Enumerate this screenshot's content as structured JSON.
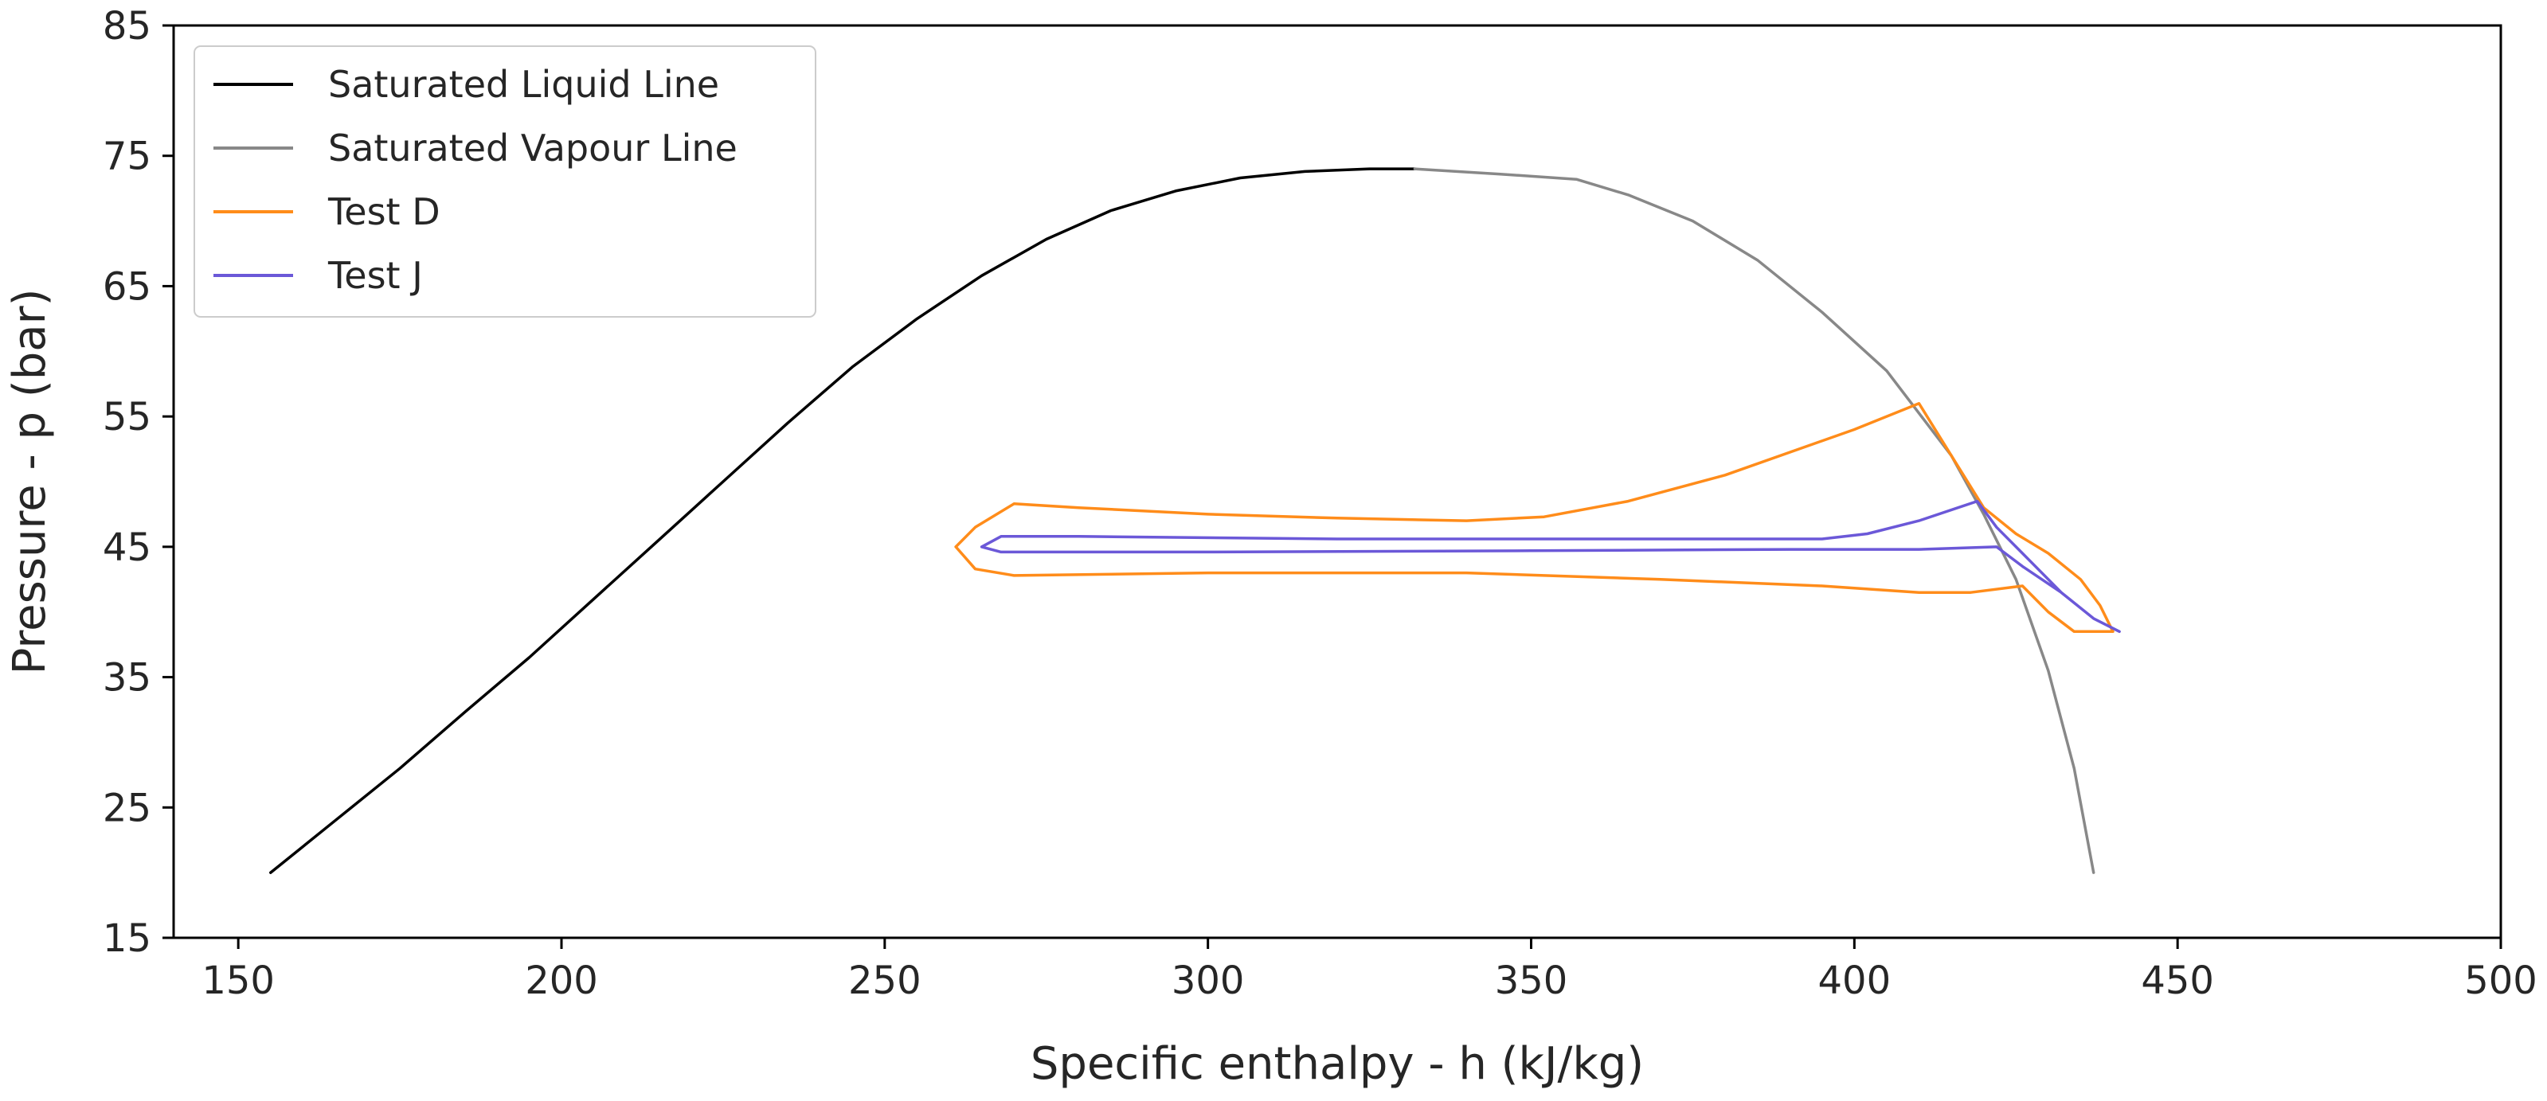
{
  "chart_data": {
    "type": "line",
    "title": "",
    "xlabel": "Specific enthalpy - h (kJ/kg)",
    "ylabel": "Pressure - p (bar)",
    "xlim": [
      140,
      500
    ],
    "ylim": [
      15,
      85
    ],
    "xticks": [
      150,
      200,
      250,
      300,
      350,
      400,
      450,
      500
    ],
    "yticks": [
      15,
      25,
      35,
      45,
      55,
      65,
      75,
      85
    ],
    "xtick_labels": [
      "150",
      "200",
      "250",
      "300",
      "350",
      "400",
      "450",
      "500"
    ],
    "ytick_labels": [
      "15",
      "25",
      "35",
      "45",
      "55",
      "65",
      "75",
      "85"
    ],
    "grid": false,
    "legend_position": "upper-left",
    "series": [
      {
        "name": "Saturated Liquid Line",
        "color": "#000000",
        "points": [
          [
            155,
            20
          ],
          [
            165,
            24
          ],
          [
            175,
            28
          ],
          [
            185,
            32.3
          ],
          [
            195,
            36.5
          ],
          [
            205,
            41
          ],
          [
            215,
            45.5
          ],
          [
            225,
            50
          ],
          [
            235,
            54.5
          ],
          [
            245,
            58.8
          ],
          [
            255,
            62.5
          ],
          [
            265,
            65.8
          ],
          [
            275,
            68.6
          ],
          [
            285,
            70.8
          ],
          [
            295,
            72.3
          ],
          [
            305,
            73.3
          ],
          [
            315,
            73.8
          ],
          [
            325,
            74
          ],
          [
            332,
            74
          ]
        ]
      },
      {
        "name": "Saturated Vapour Line",
        "color": "#888888",
        "points": [
          [
            332,
            74
          ],
          [
            345,
            73.6
          ],
          [
            357,
            73.2
          ],
          [
            365,
            72
          ],
          [
            375,
            70
          ],
          [
            385,
            67
          ],
          [
            395,
            63
          ],
          [
            405,
            58.5
          ],
          [
            415,
            52
          ],
          [
            420,
            47.5
          ],
          [
            425,
            42.5
          ],
          [
            430,
            35.5
          ],
          [
            434,
            28
          ],
          [
            437,
            20
          ]
        ]
      },
      {
        "name": "Test D",
        "color": "#ff8c1a",
        "points": [
          [
            261,
            45
          ],
          [
            264,
            46.5
          ],
          [
            270,
            48.3
          ],
          [
            280,
            48
          ],
          [
            300,
            47.5
          ],
          [
            320,
            47.2
          ],
          [
            340,
            47
          ],
          [
            352,
            47.3
          ],
          [
            365,
            48.5
          ],
          [
            380,
            50.5
          ],
          [
            400,
            54
          ],
          [
            410,
            56
          ],
          [
            415,
            52
          ],
          [
            420,
            48
          ],
          [
            425,
            46
          ],
          [
            430,
            44.5
          ],
          [
            435,
            42.5
          ],
          [
            438,
            40.5
          ],
          [
            440,
            38.5
          ],
          [
            434,
            38.5
          ],
          [
            430,
            40
          ],
          [
            426,
            42
          ],
          [
            418,
            41.5
          ],
          [
            410,
            41.5
          ],
          [
            395,
            42
          ],
          [
            370,
            42.5
          ],
          [
            340,
            43
          ],
          [
            300,
            43
          ],
          [
            270,
            42.8
          ],
          [
            264,
            43.3
          ],
          [
            261,
            45
          ]
        ]
      },
      {
        "name": "Test J",
        "color": "#6b58d8",
        "points": [
          [
            265,
            45
          ],
          [
            268,
            45.8
          ],
          [
            280,
            45.8
          ],
          [
            320,
            45.6
          ],
          [
            360,
            45.6
          ],
          [
            395,
            45.6
          ],
          [
            402,
            46
          ],
          [
            410,
            47
          ],
          [
            419,
            48.5
          ],
          [
            422,
            46.5
          ],
          [
            427,
            44
          ],
          [
            432,
            41.5
          ],
          [
            437,
            39.5
          ],
          [
            441,
            38.5
          ],
          [
            437,
            39.5
          ],
          [
            432,
            41.5
          ],
          [
            426,
            43.5
          ],
          [
            422,
            45
          ],
          [
            410,
            44.8
          ],
          [
            390,
            44.8
          ],
          [
            350,
            44.7
          ],
          [
            300,
            44.6
          ],
          [
            268,
            44.6
          ],
          [
            265,
            45
          ]
        ]
      }
    ]
  }
}
